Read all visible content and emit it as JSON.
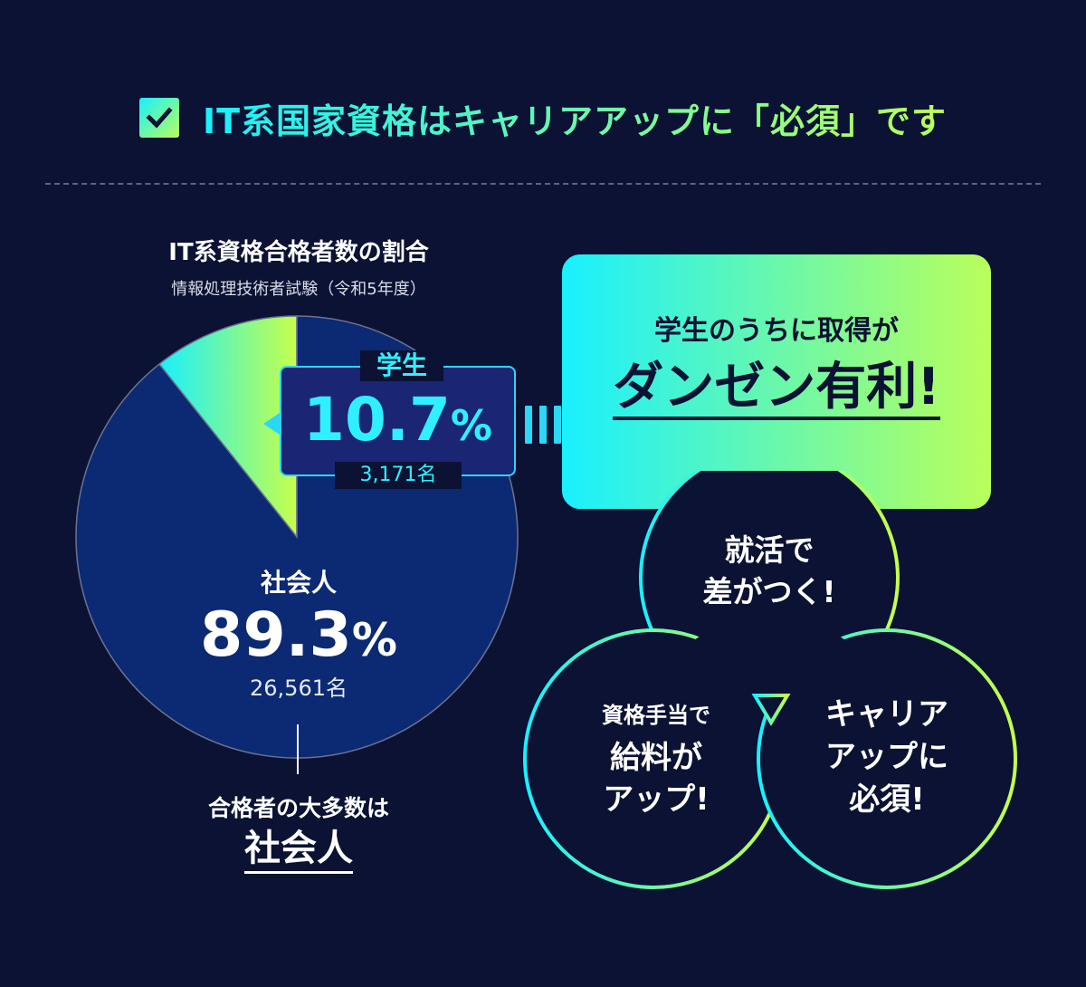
{
  "header": {
    "title": "IT系国家資格はキャリアアップに「必須」です"
  },
  "chart_data": {
    "type": "pie",
    "title": "IT系資格合格者数の割合",
    "subtitle": "情報処理技術者試験（令和5年度）",
    "slices": [
      {
        "name": "学生",
        "value": 10.7,
        "value_text": "10.7",
        "unit": "%",
        "count": "3,171名",
        "color": "gradient cyan-lime"
      },
      {
        "name": "社会人",
        "value": 89.3,
        "value_text": "89.3",
        "unit": "%",
        "count": "26,561名",
        "color": "#0c2a73"
      }
    ]
  },
  "caption": {
    "line1": "合格者の大多数は",
    "line2": "社会人"
  },
  "callout": {
    "line1": "学生のうちに取得が",
    "line2": "ダンゼン有利!"
  },
  "benefits": {
    "top": [
      "就活で",
      "差がつく!"
    ],
    "left_small": "資格手当で",
    "left": [
      "給料が",
      "アップ!"
    ],
    "right": [
      "キャリア",
      "アップに",
      "必須!"
    ]
  },
  "colors": {
    "background": "#0b1233",
    "pie_main": "#0c2a73",
    "accent_start": "#19f0ff",
    "accent_end": "#b9ff5a"
  }
}
